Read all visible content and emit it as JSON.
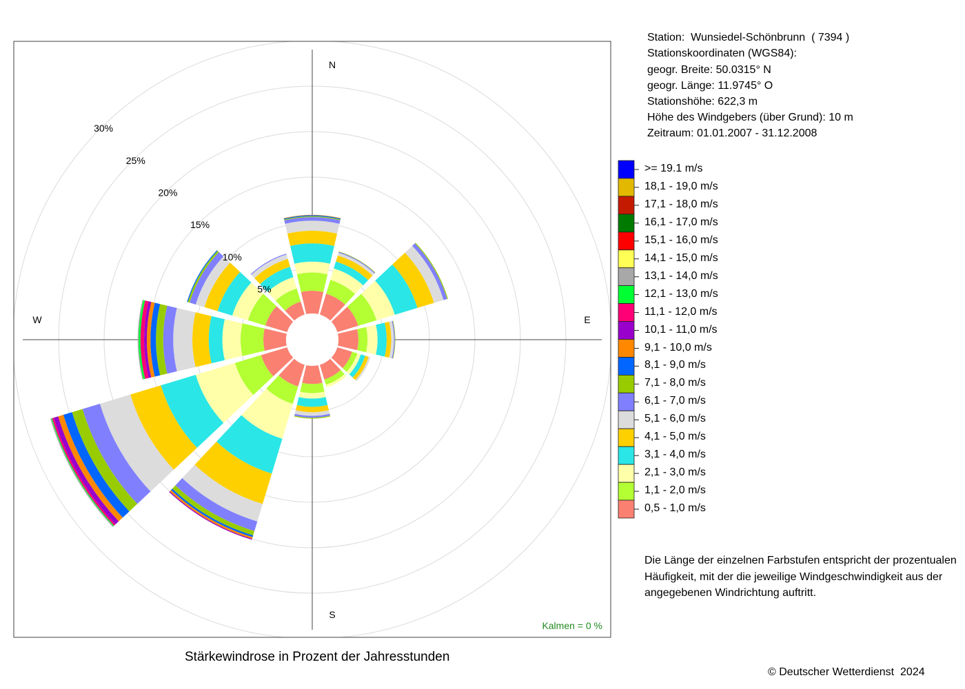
{
  "station_info": [
    "Station:  Wunsiedel-Schönbrunn  ( 7394 )",
    "Stationskoordinaten (WGS84):",
    "geogr. Breite: 50.0315° N",
    "geogr. Länge: 11.9745° O",
    "Stationshöhe: 622,3 m",
    "Höhe des Windgebers (über Grund): 10 m",
    "Zeitraum: 01.01.2007 - 31.12.2008"
  ],
  "note_lines": [
    "Die Länge der einzelnen Farbstufen entspricht der prozentualen",
    "Häufigkeit, mit der die jeweilige Windgeschwindigkeit aus der",
    "angegebenen Windrichtung auftritt."
  ],
  "footer": {
    "title": "Stärkewindrose in Prozent der Jahresstunden",
    "copyright": "© Deutscher Wetterdienst  2024"
  },
  "chart_data": {
    "type": "polar-stacked-bar",
    "title": "Stärkewindrose in Prozent der Jahresstunden",
    "directions": [
      "N",
      "E",
      "S",
      "W"
    ],
    "radial_ticks": [
      {
        "value": 5,
        "label": "5%"
      },
      {
        "value": 10,
        "label": "10%"
      },
      {
        "value": 15,
        "label": "15%"
      },
      {
        "value": 20,
        "label": "20%"
      },
      {
        "value": 25,
        "label": "25%"
      },
      {
        "value": 30,
        "label": "30%"
      }
    ],
    "radial_max": 30,
    "calm_text": "Kalmen  =  0 %",
    "calm_color": "#228b22",
    "legend": [
      {
        "label": ">= 19.1 m/s",
        "color": "#0000ff"
      },
      {
        "label": "18,1 - 19,0 m/s",
        "color": "#e2b900"
      },
      {
        "label": "17,1 - 18,0 m/s",
        "color": "#c41a00"
      },
      {
        "label": "16,1 - 17,0 m/s",
        "color": "#007a00"
      },
      {
        "label": "15,1 - 16,0 m/s",
        "color": "#ff0000"
      },
      {
        "label": "14,1 - 15,0 m/s",
        "color": "#ffff55"
      },
      {
        "label": "13,1 - 14,0 m/s",
        "color": "#a8a8a8"
      },
      {
        "label": "12,1 - 13,0 m/s",
        "color": "#00ff33"
      },
      {
        "label": "11,1 - 12,0 m/s",
        "color": "#ff0077"
      },
      {
        "label": "10,1 - 11,0 m/s",
        "color": "#9900cc"
      },
      {
        "label": "9,1 - 10,0 m/s",
        "color": "#ff8800"
      },
      {
        "label": "8,1 - 9,0 m/s",
        "color": "#0066ff"
      },
      {
        "label": "7,1 - 8,0 m/s",
        "color": "#99cc00"
      },
      {
        "label": "6,1 - 7,0 m/s",
        "color": "#8080ff"
      },
      {
        "label": "5,1 - 6,0 m/s",
        "color": "#dcdcdc"
      },
      {
        "label": "4,1 - 5,0 m/s",
        "color": "#ffd000"
      },
      {
        "label": "3,1 - 4,0 m/s",
        "color": "#2ae6e6"
      },
      {
        "label": "2,1 - 3,0 m/s",
        "color": "#ffffaa"
      },
      {
        "label": "1,1 - 2,0 m/s",
        "color": "#b3ff33"
      },
      {
        "label": "0,5 - 1,0 m/s",
        "color": "#fa8072"
      }
    ],
    "sectors": [
      {
        "direction_deg": 0,
        "cumulative": [
          2.5,
          4.5,
          5.7,
          7.7,
          9.1,
          10.2,
          10.6,
          10.7,
          10.8,
          10.85
        ]
      },
      {
        "direction_deg": 30,
        "cumulative": [
          2.4,
          4.0,
          5.3,
          6.1,
          6.8,
          7.1,
          7.2,
          7.25
        ]
      },
      {
        "direction_deg": 60,
        "cumulative": [
          2.4,
          4.5,
          6.6,
          9.2,
          11.1,
          12.2,
          12.6,
          12.7
        ]
      },
      {
        "direction_deg": 90,
        "cumulative": [
          2.2,
          3.2,
          4.3,
          5.3,
          5.8,
          6.1,
          6.2,
          6.25
        ]
      },
      {
        "direction_deg": 120,
        "cumulative": [
          1.7,
          2.3,
          2.7,
          3.2,
          3.6,
          3.8
        ]
      },
      {
        "direction_deg": 150,
        "cumulative": [
          1.7,
          2.3,
          2.6
        ]
      },
      {
        "direction_deg": 180,
        "cumulative": [
          2.0,
          3.0,
          3.6,
          4.5,
          5.1,
          5.5,
          5.7,
          5.8
        ]
      },
      {
        "direction_deg": 210,
        "cumulative": [
          2.5,
          4.5,
          8.5,
          12.5,
          16.0,
          18.0,
          19.1,
          19.6,
          19.8,
          20.0,
          20.1
        ]
      },
      {
        "direction_deg": 240,
        "cumulative": [
          3.0,
          6.0,
          10.5,
          14.5,
          18.0,
          21.5,
          23.5,
          24.7,
          25.7,
          26.3,
          26.8,
          27.0,
          27.1,
          27.2
        ]
      },
      {
        "direction_deg": 270,
        "cumulative": [
          2.5,
          5.0,
          7.0,
          8.5,
          10.3,
          12.4,
          13.5,
          14.3,
          14.9,
          15.3,
          15.6,
          16.0,
          16.2,
          16.3
        ]
      },
      {
        "direction_deg": 300,
        "cumulative": [
          2.5,
          4.5,
          6.3,
          8.0,
          9.5,
          10.5,
          11.2,
          11.4,
          11.5
        ]
      },
      {
        "direction_deg": 330,
        "cumulative": [
          1.5,
          3.0,
          4.3,
          5.5,
          6.4,
          6.9,
          7.0
        ]
      }
    ]
  }
}
